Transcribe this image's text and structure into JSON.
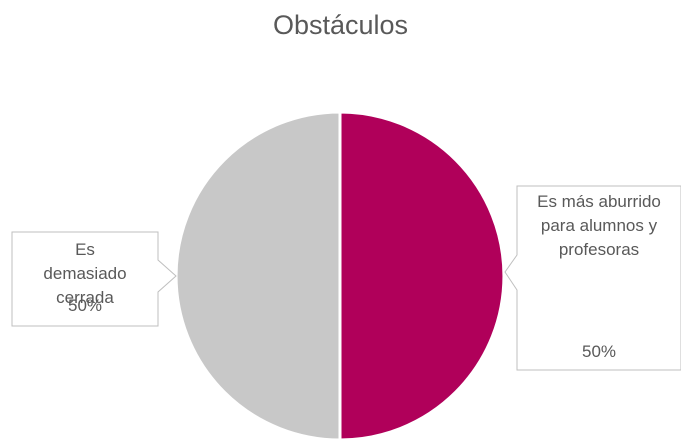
{
  "chart_data": {
    "type": "pie",
    "title": "Obstáculos",
    "categories": [
      "Es más aburrido para alumnos y profesoras",
      "Es demasiado cerrada"
    ],
    "values": [
      50,
      50
    ],
    "value_labels": [
      "50%",
      "50%"
    ],
    "colors": [
      "#b0005a",
      "#c8c8c8"
    ]
  }
}
